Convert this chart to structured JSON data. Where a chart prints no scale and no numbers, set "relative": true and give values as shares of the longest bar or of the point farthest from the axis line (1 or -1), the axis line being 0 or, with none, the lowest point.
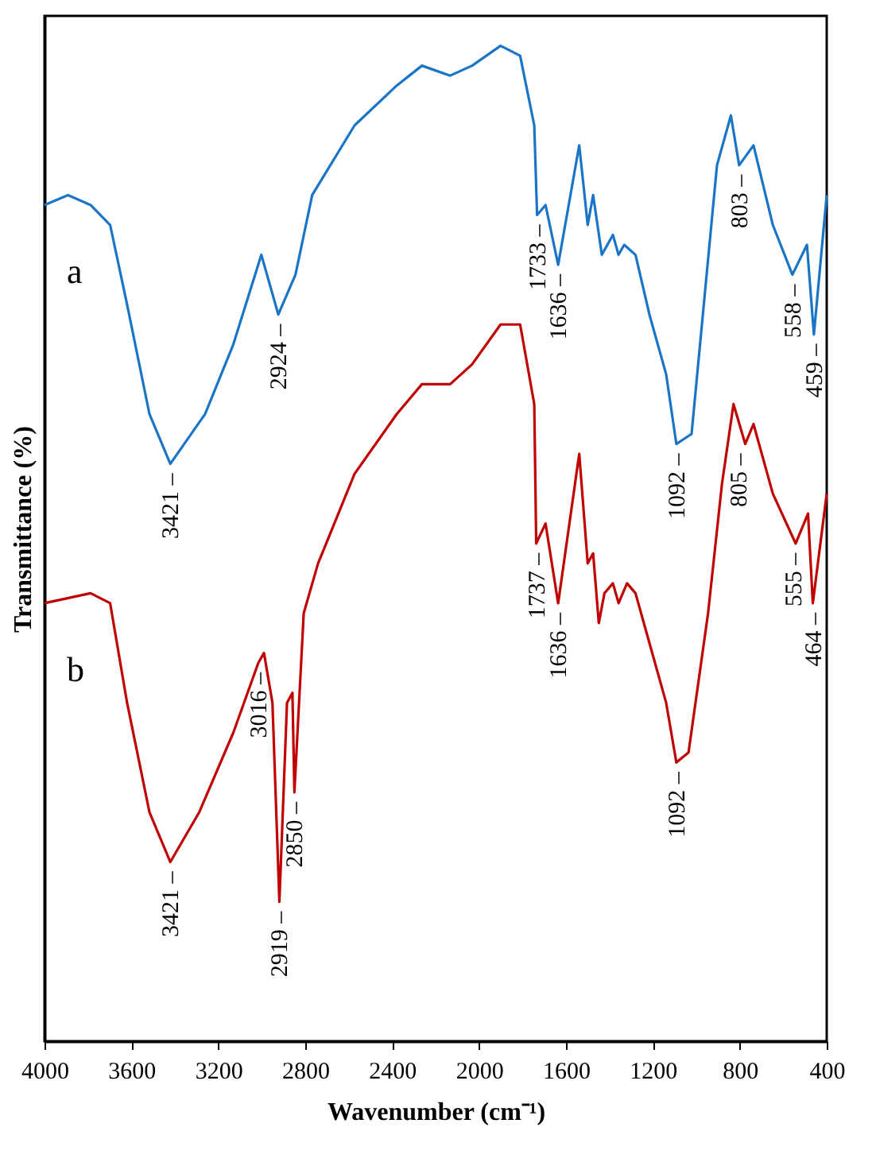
{
  "chart_data": {
    "type": "line",
    "relative": true,
    "xlabel": "Wavenumber (cm⁻¹)",
    "ylabel": "Transmittance (%)",
    "xlim": [
      4000,
      400
    ],
    "xticks": [
      4000,
      3600,
      3200,
      2800,
      2400,
      2000,
      1600,
      1200,
      800,
      400
    ],
    "grid": false,
    "legend": false,
    "marker": "none",
    "line_style": "solid",
    "series": [
      {
        "name": "a",
        "color": "#1b75c6",
        "x": [
          4000,
          3892,
          3788,
          3698,
          3620,
          3517,
          3421,
          3261,
          3131,
          3002,
          2924,
          2845,
          2768,
          2573,
          2379,
          2263,
          2133,
          2032,
          1901,
          1811,
          1746,
          1733,
          1694,
          1636,
          1539,
          1500,
          1475,
          1435,
          1384,
          1358,
          1332,
          1280,
          1216,
          1139,
          1092,
          1022,
          905,
          841,
          803,
          737,
          648,
          558,
          491,
          459,
          400
        ],
        "values": [
          0.84,
          0.85,
          0.84,
          0.82,
          0.74,
          0.63,
          0.58,
          0.63,
          0.7,
          0.79,
          0.73,
          0.77,
          0.85,
          0.92,
          0.96,
          0.98,
          0.97,
          0.98,
          1.0,
          0.99,
          0.92,
          0.83,
          0.84,
          0.78,
          0.9,
          0.82,
          0.85,
          0.79,
          0.81,
          0.79,
          0.8,
          0.79,
          0.73,
          0.67,
          0.6,
          0.61,
          0.88,
          0.93,
          0.88,
          0.9,
          0.82,
          0.77,
          0.8,
          0.71,
          0.85
        ]
      },
      {
        "name": "b",
        "color": "#c00000",
        "x": [
          4000,
          3788,
          3698,
          3620,
          3517,
          3421,
          3288,
          3131,
          3016,
          2990,
          2951,
          2919,
          2884,
          2859,
          2850,
          2807,
          2741,
          2573,
          2379,
          2263,
          2133,
          2032,
          1901,
          1811,
          1746,
          1737,
          1694,
          1636,
          1539,
          1500,
          1475,
          1449,
          1423,
          1384,
          1358,
          1319,
          1280,
          1216,
          1139,
          1092,
          1036,
          946,
          882,
          829,
          775,
          737,
          648,
          543,
          486,
          464,
          400
        ],
        "values": [
          0.44,
          0.45,
          0.44,
          0.34,
          0.23,
          0.18,
          0.23,
          0.31,
          0.38,
          0.39,
          0.34,
          0.14,
          0.34,
          0.35,
          0.25,
          0.43,
          0.48,
          0.57,
          0.63,
          0.66,
          0.66,
          0.68,
          0.72,
          0.72,
          0.64,
          0.5,
          0.52,
          0.44,
          0.59,
          0.48,
          0.49,
          0.42,
          0.45,
          0.46,
          0.44,
          0.46,
          0.45,
          0.4,
          0.34,
          0.28,
          0.29,
          0.43,
          0.56,
          0.64,
          0.6,
          0.62,
          0.55,
          0.5,
          0.53,
          0.44,
          0.55
        ]
      }
    ],
    "annotations": [
      {
        "text": "3421 –",
        "x": 3421,
        "y": 0.58
      },
      {
        "text": "2924 –",
        "x": 2924,
        "y": 0.73
      },
      {
        "text": "1733 –",
        "x": 1733,
        "y": 0.83
      },
      {
        "text": "1636 –",
        "x": 1636,
        "y": 0.78
      },
      {
        "text": "1092 –",
        "x": 1092,
        "y": 0.6
      },
      {
        "text": "803 –",
        "x": 803,
        "y": 0.88
      },
      {
        "text": "558 –",
        "x": 558,
        "y": 0.77
      },
      {
        "text": "459 –",
        "x": 459,
        "y": 0.71
      },
      {
        "text": "3421 –",
        "x": 3421,
        "y": 0.18
      },
      {
        "text": "3016 –",
        "x": 3016,
        "y": 0.38
      },
      {
        "text": "2919 –",
        "x": 2919,
        "y": 0.14
      },
      {
        "text": "2850 –",
        "x": 2850,
        "y": 0.25
      },
      {
        "text": "1737 –",
        "x": 1737,
        "y": 0.5
      },
      {
        "text": "1636 –",
        "x": 1636,
        "y": 0.44
      },
      {
        "text": "1092 –",
        "x": 1092,
        "y": 0.28
      },
      {
        "text": "805 –",
        "x": 805,
        "y": 0.6
      },
      {
        "text": "555 –",
        "x": 555,
        "y": 0.5
      },
      {
        "text": "464 –",
        "x": 464,
        "y": 0.44
      }
    ]
  }
}
